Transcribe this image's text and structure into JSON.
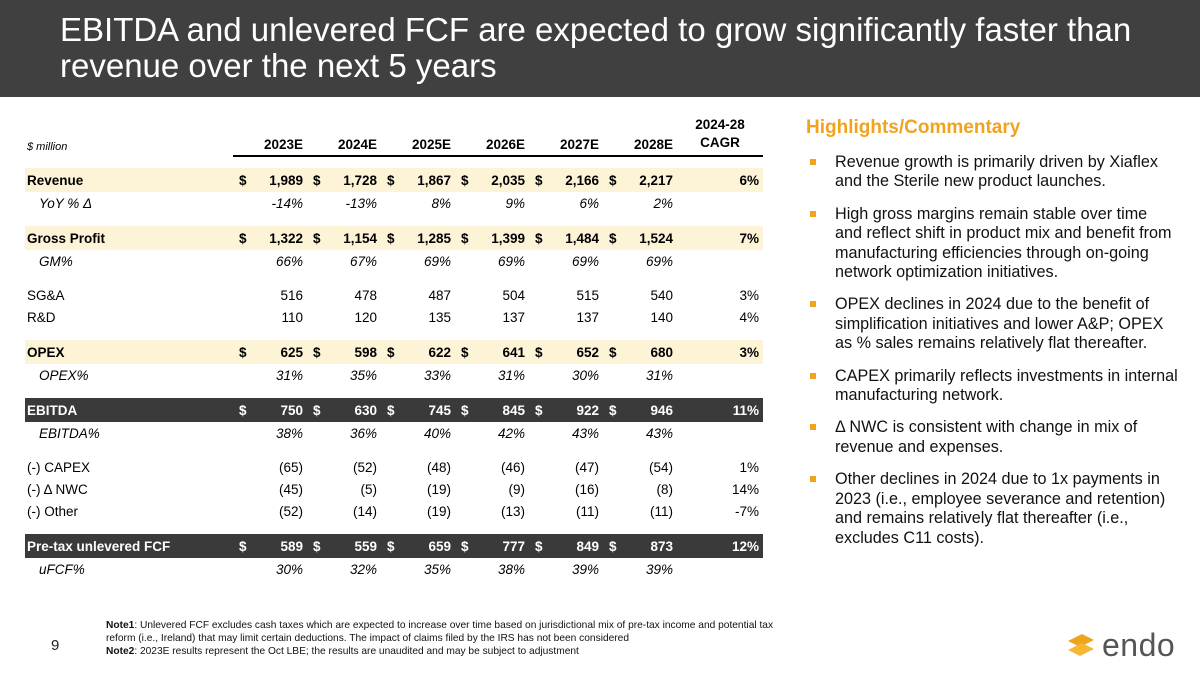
{
  "title": "EBITDA and unlevered FCF are expected to grow significantly faster than revenue over the next 5 years",
  "colors": {
    "header_bg": "#404040",
    "accent": "#f0a41e",
    "band": "#fdf3d7",
    "dark_row": "#3a3a3a"
  },
  "table": {
    "units_label": "$ million",
    "years": [
      "2023E",
      "2024E",
      "2025E",
      "2026E",
      "2027E",
      "2028E"
    ],
    "cagr_header": {
      "line1": "2024-28",
      "line2": "CAGR"
    },
    "rows": {
      "revenue": {
        "label": "Revenue",
        "values": [
          "1,989",
          "1,728",
          "1,867",
          "2,035",
          "2,166",
          "2,217"
        ],
        "cagr": "6%"
      },
      "yoy": {
        "label": "YoY % Δ",
        "values": [
          "-14%",
          "-13%",
          "8%",
          "9%",
          "6%",
          "2%"
        ],
        "cagr": ""
      },
      "gross_profit": {
        "label": "Gross Profit",
        "values": [
          "1,322",
          "1,154",
          "1,285",
          "1,399",
          "1,484",
          "1,524"
        ],
        "cagr": "7%"
      },
      "gm": {
        "label": "GM%",
        "values": [
          "66%",
          "67%",
          "69%",
          "69%",
          "69%",
          "69%"
        ],
        "cagr": ""
      },
      "sga": {
        "label": "SG&A",
        "values": [
          "516",
          "478",
          "487",
          "504",
          "515",
          "540"
        ],
        "cagr": "3%"
      },
      "rd": {
        "label": "R&D",
        "values": [
          "110",
          "120",
          "135",
          "137",
          "137",
          "140"
        ],
        "cagr": "4%"
      },
      "opex": {
        "label": "OPEX",
        "values": [
          "625",
          "598",
          "622",
          "641",
          "652",
          "680"
        ],
        "cagr": "3%"
      },
      "opex_pct": {
        "label": "OPEX%",
        "values": [
          "31%",
          "35%",
          "33%",
          "31%",
          "30%",
          "31%"
        ],
        "cagr": ""
      },
      "ebitda": {
        "label": "EBITDA",
        "values": [
          "750",
          "630",
          "745",
          "845",
          "922",
          "946"
        ],
        "cagr": "11%"
      },
      "ebitda_pct": {
        "label": "EBITDA%",
        "values": [
          "38%",
          "36%",
          "40%",
          "42%",
          "43%",
          "43%"
        ],
        "cagr": ""
      },
      "capex": {
        "label": "(-) CAPEX",
        "values": [
          "(65)",
          "(52)",
          "(48)",
          "(46)",
          "(47)",
          "(54)"
        ],
        "cagr": "1%"
      },
      "nwc": {
        "label": "(-) Δ NWC",
        "values": [
          "(45)",
          "(5)",
          "(19)",
          "(9)",
          "(16)",
          "(8)"
        ],
        "cagr": "14%"
      },
      "other": {
        "label": "(-) Other",
        "values": [
          "(52)",
          "(14)",
          "(19)",
          "(13)",
          "(11)",
          "(11)"
        ],
        "cagr": "-7%"
      },
      "ufcf": {
        "label": "Pre-tax unlevered FCF",
        "values": [
          "589",
          "559",
          "659",
          "777",
          "849",
          "873"
        ],
        "cagr": "12%"
      },
      "ufcf_pct": {
        "label": "uFCF%",
        "values": [
          "30%",
          "32%",
          "35%",
          "38%",
          "39%",
          "39%"
        ],
        "cagr": ""
      }
    },
    "currency_symbol": "$"
  },
  "highlights": {
    "title": "Highlights/Commentary",
    "items": [
      "Revenue growth is primarily driven by Xiaflex and the Sterile new product launches.",
      "High gross margins remain stable over time and reflect shift in product mix and benefit from manufacturing efficiencies through on-going network optimization initiatives.",
      "OPEX declines in 2024 due to the benefit of simplification initiatives and lower A&P; OPEX as % sales remains relatively flat thereafter.",
      "CAPEX primarily reflects investments in internal manufacturing network.",
      "Δ NWC is consistent with change in mix of revenue and expenses.",
      "Other declines in 2024 due to 1x payments in 2023 (i.e., employee severance and retention) and remains relatively flat thereafter (i.e., excludes C11 costs)."
    ]
  },
  "notes": {
    "note1_label": "Note1",
    "note1_text": ":  Unlevered FCF excludes cash taxes which are expected to increase over time based on jurisdictional mix of pre-tax income and potential tax reform (i.e., Ireland) that may limit certain deductions.  The impact of claims filed by the IRS has not been considered",
    "note2_label": "Note2",
    "note2_text": ": 2023E results represent the Oct LBE; the results are unaudited and may be subject to adjustment"
  },
  "page_number": "9",
  "logo": {
    "text": "endo",
    "icon": "endo-logo-icon"
  }
}
